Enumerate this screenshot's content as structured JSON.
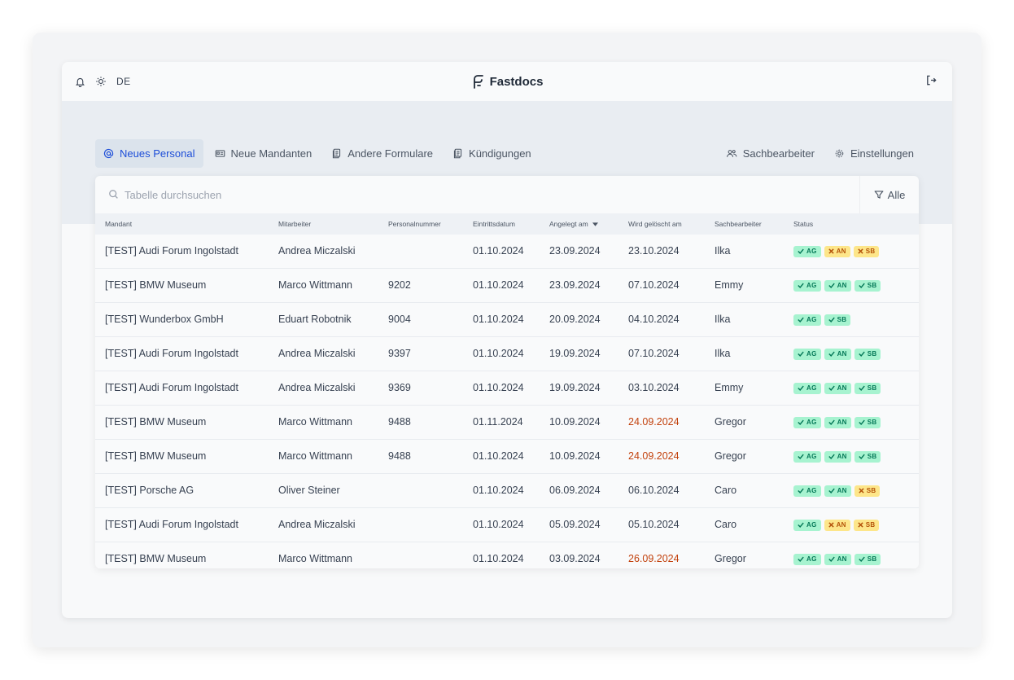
{
  "topbar": {
    "lang": "DE",
    "brand": "Fastdocs"
  },
  "nav": {
    "tabs": [
      {
        "label": "Neues Personal",
        "active": true,
        "icon": "at-icon"
      },
      {
        "label": "Neue Mandanten",
        "active": false,
        "icon": "id-card-icon"
      },
      {
        "label": "Andere Formulare",
        "active": false,
        "icon": "documents-icon"
      },
      {
        "label": "Kündigungen",
        "active": false,
        "icon": "documents-icon"
      }
    ],
    "right": [
      {
        "label": "Sachbearbeiter",
        "icon": "users-icon"
      },
      {
        "label": "Einstellungen",
        "icon": "gear-icon"
      }
    ]
  },
  "search": {
    "placeholder": "Tabelle durchsuchen",
    "filter_label": "Alle"
  },
  "table": {
    "headers": {
      "mandant": "Mandant",
      "mitarbeiter": "Mitarbeiter",
      "personalnummer": "Personalnummer",
      "eintrittsdatum": "Eintrittsdatum",
      "angelegt": "Angelegt am",
      "geloescht": "Wird gelöscht am",
      "sachbearbeiter": "Sachbearbeiter",
      "status": "Status"
    },
    "rows": [
      {
        "mandant": "[TEST] Audi Forum Ingolstadt",
        "mitarbeiter": "Andrea Miczalski",
        "nr": "",
        "eintritt": "01.10.2024",
        "angelegt": "23.09.2024",
        "geloescht": "23.10.2024",
        "warn": false,
        "sb": "Ilka",
        "status": [
          {
            "label": "AG",
            "ok": true
          },
          {
            "label": "AN",
            "ok": false
          },
          {
            "label": "SB",
            "ok": false
          }
        ]
      },
      {
        "mandant": "[TEST] BMW Museum",
        "mitarbeiter": "Marco Wittmann",
        "nr": "9202",
        "eintritt": "01.10.2024",
        "angelegt": "23.09.2024",
        "geloescht": "07.10.2024",
        "warn": false,
        "sb": "Emmy",
        "status": [
          {
            "label": "AG",
            "ok": true
          },
          {
            "label": "AN",
            "ok": true
          },
          {
            "label": "SB",
            "ok": true
          }
        ]
      },
      {
        "mandant": "[TEST] Wunderbox GmbH",
        "mitarbeiter": "Eduart Robotnik",
        "nr": "9004",
        "eintritt": "01.10.2024",
        "angelegt": "20.09.2024",
        "geloescht": "04.10.2024",
        "warn": false,
        "sb": "Ilka",
        "status": [
          {
            "label": "AG",
            "ok": true
          },
          {
            "label": "SB",
            "ok": true
          }
        ]
      },
      {
        "mandant": "[TEST] Audi Forum Ingolstadt",
        "mitarbeiter": "Andrea Miczalski",
        "nr": "9397",
        "eintritt": "01.10.2024",
        "angelegt": "19.09.2024",
        "geloescht": "07.10.2024",
        "warn": false,
        "sb": "Ilka",
        "status": [
          {
            "label": "AG",
            "ok": true
          },
          {
            "label": "AN",
            "ok": true
          },
          {
            "label": "SB",
            "ok": true
          }
        ]
      },
      {
        "mandant": "[TEST] Audi Forum Ingolstadt",
        "mitarbeiter": "Andrea Miczalski",
        "nr": "9369",
        "eintritt": "01.10.2024",
        "angelegt": "19.09.2024",
        "geloescht": "03.10.2024",
        "warn": false,
        "sb": "Emmy",
        "status": [
          {
            "label": "AG",
            "ok": true
          },
          {
            "label": "AN",
            "ok": true
          },
          {
            "label": "SB",
            "ok": true
          }
        ]
      },
      {
        "mandant": "[TEST] BMW Museum",
        "mitarbeiter": "Marco Wittmann",
        "nr": "9488",
        "eintritt": "01.11.2024",
        "angelegt": "10.09.2024",
        "geloescht": "24.09.2024",
        "warn": true,
        "sb": "Gregor",
        "status": [
          {
            "label": "AG",
            "ok": true
          },
          {
            "label": "AN",
            "ok": true
          },
          {
            "label": "SB",
            "ok": true
          }
        ]
      },
      {
        "mandant": "[TEST] BMW Museum",
        "mitarbeiter": "Marco Wittmann",
        "nr": "9488",
        "eintritt": "01.10.2024",
        "angelegt": "10.09.2024",
        "geloescht": "24.09.2024",
        "warn": true,
        "sb": "Gregor",
        "status": [
          {
            "label": "AG",
            "ok": true
          },
          {
            "label": "AN",
            "ok": true
          },
          {
            "label": "SB",
            "ok": true
          }
        ]
      },
      {
        "mandant": "[TEST] Porsche AG",
        "mitarbeiter": "Oliver Steiner",
        "nr": "",
        "eintritt": "01.10.2024",
        "angelegt": "06.09.2024",
        "geloescht": "06.10.2024",
        "warn": false,
        "sb": "Caro",
        "status": [
          {
            "label": "AG",
            "ok": true
          },
          {
            "label": "AN",
            "ok": true
          },
          {
            "label": "SB",
            "ok": false
          }
        ]
      },
      {
        "mandant": "[TEST] Audi Forum Ingolstadt",
        "mitarbeiter": "Andrea Miczalski",
        "nr": "",
        "eintritt": "01.10.2024",
        "angelegt": "05.09.2024",
        "geloescht": "05.10.2024",
        "warn": false,
        "sb": "Caro",
        "status": [
          {
            "label": "AG",
            "ok": true
          },
          {
            "label": "AN",
            "ok": false
          },
          {
            "label": "SB",
            "ok": false
          }
        ]
      },
      {
        "mandant": "[TEST] BMW Museum",
        "mitarbeiter": "Marco Wittmann",
        "nr": "",
        "eintritt": "01.10.2024",
        "angelegt": "03.09.2024",
        "geloescht": "26.09.2024",
        "warn": true,
        "sb": "Gregor",
        "status": [
          {
            "label": "AG",
            "ok": true
          },
          {
            "label": "AN",
            "ok": true
          },
          {
            "label": "SB",
            "ok": true
          }
        ]
      }
    ]
  },
  "colors": {
    "accent": "#1d4ed8",
    "warn_date": "#c2410c",
    "badge_ok_bg": "#a7f3d0",
    "badge_ok_fg": "#047857",
    "badge_no_bg": "#fde68a",
    "badge_no_fg": "#b45309"
  }
}
